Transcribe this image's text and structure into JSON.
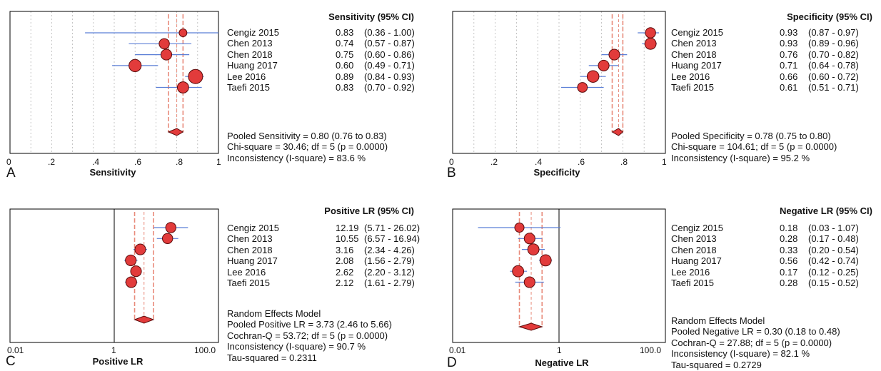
{
  "chart_data": [
    {
      "type": "forest",
      "panel": "A",
      "scale": "linear",
      "title": "Sensitivity (95% CI)",
      "xlabel": "Sensitivity",
      "xlim": [
        0,
        1
      ],
      "tick_labels": [
        "0",
        ".2",
        ".4",
        ".6",
        ".8",
        "1"
      ],
      "studies": [
        {
          "name": "Cengiz 2015",
          "value_label": "0.83",
          "ci_label": "(0.36 - 1.00)",
          "est": 0.83,
          "lo": 0.36,
          "hi": 1.0,
          "weight": 0.35
        },
        {
          "name": "Chen 2013",
          "value_label": "0.74",
          "ci_label": "(0.57 - 0.87)",
          "est": 0.74,
          "lo": 0.57,
          "hi": 0.87,
          "weight": 0.6
        },
        {
          "name": "Chen 2018",
          "value_label": "0.75",
          "ci_label": "(0.60 - 0.86)",
          "est": 0.75,
          "lo": 0.6,
          "hi": 0.86,
          "weight": 0.65
        },
        {
          "name": "Huang 2017",
          "value_label": "0.60",
          "ci_label": "(0.49 - 0.71)",
          "est": 0.6,
          "lo": 0.49,
          "hi": 0.71,
          "weight": 0.8
        },
        {
          "name": "Lee 2016",
          "value_label": "0.89",
          "ci_label": "(0.84 - 0.93)",
          "est": 0.89,
          "lo": 0.84,
          "hi": 0.93,
          "weight": 1.0
        },
        {
          "name": "Taefi 2015",
          "value_label": "0.83",
          "ci_label": "(0.70 - 0.92)",
          "est": 0.83,
          "lo": 0.7,
          "hi": 0.92,
          "weight": 0.7
        }
      ],
      "pooled": {
        "est": 0.8,
        "lo": 0.76,
        "hi": 0.83
      },
      "null_line": null,
      "summary_lines": [
        "Pooled Sensitivity = 0.80 (0.76 to 0.83)",
        "Chi-square = 30.46; df =  5 (p = 0.0000)",
        "Inconsistency (I-square) = 83.6 %"
      ]
    },
    {
      "type": "forest",
      "panel": "B",
      "scale": "linear",
      "title": "Specificity (95% CI)",
      "xlabel": "Specificity",
      "xlim": [
        0,
        1
      ],
      "tick_labels": [
        "0",
        ".2",
        ".4",
        ".6",
        ".8",
        "1"
      ],
      "studies": [
        {
          "name": "Cengiz 2015",
          "value_label": "0.93",
          "ci_label": "(0.87 - 0.97)",
          "est": 0.93,
          "lo": 0.87,
          "hi": 0.97,
          "weight": 0.6
        },
        {
          "name": "Chen 2013",
          "value_label": "0.93",
          "ci_label": "(0.89 - 0.96)",
          "est": 0.93,
          "lo": 0.89,
          "hi": 0.96,
          "weight": 0.7
        },
        {
          "name": "Chen 2018",
          "value_label": "0.76",
          "ci_label": "(0.70 - 0.82)",
          "est": 0.76,
          "lo": 0.7,
          "hi": 0.82,
          "weight": 0.65
        },
        {
          "name": "Huang 2017",
          "value_label": "0.71",
          "ci_label": "(0.64 - 0.78)",
          "est": 0.71,
          "lo": 0.64,
          "hi": 0.78,
          "weight": 0.65
        },
        {
          "name": "Lee 2016",
          "value_label": "0.66",
          "ci_label": "(0.60 - 0.72)",
          "est": 0.66,
          "lo": 0.6,
          "hi": 0.72,
          "weight": 0.75
        },
        {
          "name": "Taefi 2015",
          "value_label": "0.61",
          "ci_label": "(0.51 - 0.71)",
          "est": 0.61,
          "lo": 0.51,
          "hi": 0.71,
          "weight": 0.55
        }
      ],
      "pooled": {
        "est": 0.78,
        "lo": 0.75,
        "hi": 0.8
      },
      "null_line": null,
      "summary_lines": [
        "Pooled Specificity = 0.78 (0.75 to 0.80)",
        "Chi-square = 104.61; df =  5 (p = 0.0000)",
        "Inconsistency (I-square) = 95.2 %"
      ]
    },
    {
      "type": "forest",
      "panel": "C",
      "scale": "log",
      "title": "Positive LR (95% CI)",
      "xlabel": "Positive LR",
      "xlim": [
        0.01,
        100
      ],
      "ticks": [
        0.01,
        1,
        100
      ],
      "tick_labels": [
        "0.01",
        "1",
        "100.0"
      ],
      "studies": [
        {
          "name": "Cengiz 2015",
          "value_label": "12.19",
          "ci_label": "(5.71 - 26.02)",
          "est": 12.19,
          "lo": 5.71,
          "hi": 26.02,
          "weight": 0.6
        },
        {
          "name": "Chen 2013",
          "value_label": "10.55",
          "ci_label": "(6.57 - 16.94)",
          "est": 10.55,
          "lo": 6.57,
          "hi": 16.94,
          "weight": 0.6
        },
        {
          "name": "Chen 2018",
          "value_label": "3.16",
          "ci_label": "(2.34 - 4.26)",
          "est": 3.16,
          "lo": 2.34,
          "hi": 4.26,
          "weight": 0.65
        },
        {
          "name": "Huang 2017",
          "value_label": "2.08",
          "ci_label": "(1.56 - 2.79)",
          "est": 2.08,
          "lo": 1.56,
          "hi": 2.79,
          "weight": 0.65
        },
        {
          "name": "Lee 2016",
          "value_label": "2.62",
          "ci_label": "(2.20 - 3.12)",
          "est": 2.62,
          "lo": 2.2,
          "hi": 3.12,
          "weight": 0.65
        },
        {
          "name": "Taefi 2015",
          "value_label": "2.12",
          "ci_label": "(1.61 - 2.79)",
          "est": 2.12,
          "lo": 1.61,
          "hi": 2.79,
          "weight": 0.65
        }
      ],
      "pooled": {
        "est": 3.73,
        "lo": 2.46,
        "hi": 5.66
      },
      "null_line": 1,
      "summary_lines": [
        "Random Effects Model",
        "Pooled Positive LR = 3.73 (2.46 to 5.66)",
        "Cochran-Q = 53.72; df =  5 (p = 0.0000)",
        "Inconsistency (I-square) = 90.7 %",
        "Tau-squared = 0.2311"
      ]
    },
    {
      "type": "forest",
      "panel": "D",
      "scale": "log",
      "title": "Negative LR (95% CI)",
      "xlabel": "Negative LR",
      "xlim": [
        0.01,
        100
      ],
      "ticks": [
        0.01,
        1,
        100
      ],
      "tick_labels": [
        "0.01",
        "1",
        "100.0"
      ],
      "studies": [
        {
          "name": "Cengiz 2015",
          "value_label": "0.18",
          "ci_label": "(0.03 - 1.07)",
          "est": 0.18,
          "lo": 0.03,
          "hi": 1.07,
          "weight": 0.5
        },
        {
          "name": "Chen 2013",
          "value_label": "0.28",
          "ci_label": "(0.17 - 0.48)",
          "est": 0.28,
          "lo": 0.17,
          "hi": 0.48,
          "weight": 0.65
        },
        {
          "name": "Chen 2018",
          "value_label": "0.33",
          "ci_label": "(0.20 - 0.54)",
          "est": 0.33,
          "lo": 0.2,
          "hi": 0.54,
          "weight": 0.7
        },
        {
          "name": "Huang 2017",
          "value_label": "0.56",
          "ci_label": "(0.42 - 0.74)",
          "est": 0.56,
          "lo": 0.42,
          "hi": 0.74,
          "weight": 0.7
        },
        {
          "name": "Lee 2016",
          "value_label": "0.17",
          "ci_label": "(0.12 - 0.25)",
          "est": 0.17,
          "lo": 0.12,
          "hi": 0.25,
          "weight": 0.7
        },
        {
          "name": "Taefi 2015",
          "value_label": "0.28",
          "ci_label": "(0.15 - 0.52)",
          "est": 0.28,
          "lo": 0.15,
          "hi": 0.52,
          "weight": 0.65
        }
      ],
      "pooled": {
        "est": 0.3,
        "lo": 0.18,
        "hi": 0.48
      },
      "null_line": 1,
      "summary_lines": [
        "Random Effects Model",
        "Pooled Negative LR = 0.30 (0.18 to 0.48)",
        "Cochran-Q = 27.88; df =  5 (p = 0.0000)",
        "Inconsistency (I-square) = 82.1 %",
        "Tau-squared = 0.2729"
      ]
    }
  ],
  "colors": {
    "marker_fill": "#e23b3b",
    "marker_stroke": "#5a0a0a",
    "ci_line": "#5b7fd6",
    "pooled_band": "#e88a7a",
    "grid": "#b8b8b8",
    "axis": "#000000"
  }
}
